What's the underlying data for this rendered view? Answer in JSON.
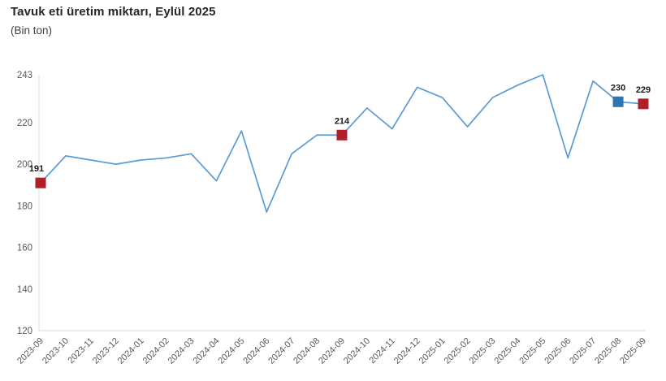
{
  "header": {
    "title": "Tavuk eti üretim miktarı, Eylül 2025",
    "subtitle": "(Bin ton)"
  },
  "chart_data": {
    "type": "line",
    "title": "Tavuk eti üretim miktarı, Eylül 2025",
    "subtitle": "(Bin ton)",
    "xlabel": "",
    "ylabel": "Bin ton",
    "categories": [
      "2023-09",
      "2023-10",
      "2023-11",
      "2023-12",
      "2024-01",
      "2024-02",
      "2024-03",
      "2024-04",
      "2024-05",
      "2024-06",
      "2024-07",
      "2024-08",
      "2024-09",
      "2024-10",
      "2024-11",
      "2024-12",
      "2025-01",
      "2025-02",
      "2025-03",
      "2025-04",
      "2025-05",
      "2025-06",
      "2025-07",
      "2025-08",
      "2025-09"
    ],
    "values": [
      191,
      204,
      202,
      200,
      202,
      203,
      205,
      192,
      216,
      177,
      205,
      214,
      214,
      227,
      217,
      237,
      232,
      218,
      232,
      238,
      243,
      203,
      240,
      230,
      229
    ],
    "ylim": [
      120,
      243
    ],
    "yticks": [
      243,
      220,
      200,
      180,
      160,
      140,
      120
    ],
    "grid": false,
    "legend": "none",
    "line_color": "#5b9bd5",
    "axis_color": "#d9d9d9",
    "tick_label_color": "#595959",
    "data_label_color": "#1a1a1a",
    "markers": [
      {
        "index": 0,
        "label": "191",
        "color": "#b02028",
        "shape": "square"
      },
      {
        "index": 12,
        "label": "214",
        "color": "#b02028",
        "shape": "square"
      },
      {
        "index": 23,
        "label": "230",
        "color": "#2e75b6",
        "shape": "square"
      },
      {
        "index": 24,
        "label": "229",
        "color": "#b02028",
        "shape": "square"
      }
    ]
  }
}
